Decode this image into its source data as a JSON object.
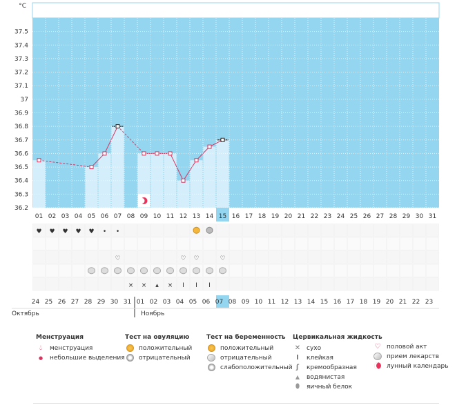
{
  "chart_data": {
    "type": "bar-line",
    "ylabel": "°C",
    "ylim": [
      36.2,
      37.6
    ],
    "y_ticks": [
      "37.5",
      "37.4",
      "37.3",
      "37.2",
      "37.1",
      "37",
      "36.9",
      "36.8",
      "36.7",
      "36.6",
      "36.5",
      "36.4",
      "36.3",
      "36.2"
    ],
    "cycle_days": [
      "01",
      "02",
      "03",
      "04",
      "05",
      "06",
      "07",
      "08",
      "09",
      "10",
      "11",
      "12",
      "13",
      "14",
      "15",
      "16",
      "17",
      "18",
      "19",
      "20",
      "21",
      "22",
      "23",
      "24",
      "25",
      "26",
      "27",
      "28",
      "29",
      "30",
      "31"
    ],
    "selected_day_index": 14,
    "temperatures": [
      36.55,
      null,
      null,
      null,
      36.5,
      36.6,
      36.8,
      null,
      36.6,
      36.6,
      36.6,
      36.4,
      36.55,
      36.65,
      36.7
    ],
    "marked_days": [
      6,
      14
    ],
    "moon_day_index": 8,
    "calendar_dates": [
      "24",
      "25",
      "26",
      "27",
      "28",
      "29",
      "30",
      "31",
      "01",
      "02",
      "03",
      "04",
      "05",
      "06",
      "07",
      "08",
      "09",
      "10",
      "11",
      "12",
      "13",
      "14",
      "15",
      "16",
      "17",
      "18",
      "19",
      "20",
      "21",
      "22",
      "23"
    ],
    "weekend_indices": [
      5,
      6,
      12,
      13,
      19,
      20,
      26,
      27
    ],
    "month_labels": [
      {
        "label": "Октябрь",
        "start_index": 0
      },
      {
        "label": "Ноябрь",
        "start_index": 8
      }
    ],
    "rows": {
      "menstruation": [
        {
          "day": 0,
          "kind": "heavy"
        },
        {
          "day": 1,
          "kind": "heavy"
        },
        {
          "day": 2,
          "kind": "heavy"
        },
        {
          "day": 3,
          "kind": "heavy"
        },
        {
          "day": 4,
          "kind": "heavy"
        },
        {
          "day": 5,
          "kind": "light"
        },
        {
          "day": 6,
          "kind": "light"
        }
      ],
      "ovulation_test": [
        {
          "day": 12,
          "kind": "positive"
        },
        {
          "day": 13,
          "kind": "negative"
        }
      ],
      "intercourse": [
        6,
        11,
        12,
        14
      ],
      "medication": [
        4,
        5,
        6,
        7,
        8,
        9,
        10,
        11,
        12,
        13,
        14
      ],
      "cervical_fluid": [
        {
          "day": 7,
          "kind": "dry"
        },
        {
          "day": 8,
          "kind": "dry"
        },
        {
          "day": 9,
          "kind": "watery"
        },
        {
          "day": 10,
          "kind": "dry"
        },
        {
          "day": 11,
          "kind": "sticky"
        },
        {
          "day": 12,
          "kind": "sticky"
        },
        {
          "day": 13,
          "kind": "sticky"
        }
      ]
    },
    "colors": {
      "plot_bg": "#94d5f0",
      "bar_fill": "#d4eefb",
      "line": "#d8345f",
      "selected": "#94d5f0",
      "weekend_text": "#d8345f"
    }
  },
  "legend": {
    "menstruation": {
      "title": "Менструация",
      "items": [
        {
          "icon": "heavy-drop-icon",
          "label": "менструация"
        },
        {
          "icon": "small-drop-icon",
          "label": "небольшие выделения"
        }
      ]
    },
    "ovulation": {
      "title": "Тест на овуляцию",
      "items": [
        {
          "icon": "positive-test-icon",
          "label": "положительный"
        },
        {
          "icon": "negative-test-icon",
          "label": "отрицательный"
        }
      ]
    },
    "pregnancy": {
      "title": "Тест на беременность",
      "items": [
        {
          "icon": "positive-pregnancy-icon",
          "label": "положительный"
        },
        {
          "icon": "negative-pregnancy-icon",
          "label": "отрицательный"
        },
        {
          "icon": "weak-positive-pregnancy-icon",
          "label": "слабоположительный"
        }
      ]
    },
    "cervical": {
      "title": "Цервикальная жидкость",
      "items": [
        {
          "icon": "dry-icon",
          "label": "сухо"
        },
        {
          "icon": "sticky-icon",
          "label": "клейкая"
        },
        {
          "icon": "creamy-icon",
          "label": "кремообразная"
        },
        {
          "icon": "watery-icon",
          "label": "водянистая"
        },
        {
          "icon": "egg-white-icon",
          "label": "яичный белок"
        }
      ]
    },
    "other": {
      "items": [
        {
          "icon": "heart-icon",
          "label": "половой акт"
        },
        {
          "icon": "pill-icon",
          "label": "прием лекарств"
        },
        {
          "icon": "moon-icon",
          "label": "лунный календарь"
        }
      ]
    }
  }
}
